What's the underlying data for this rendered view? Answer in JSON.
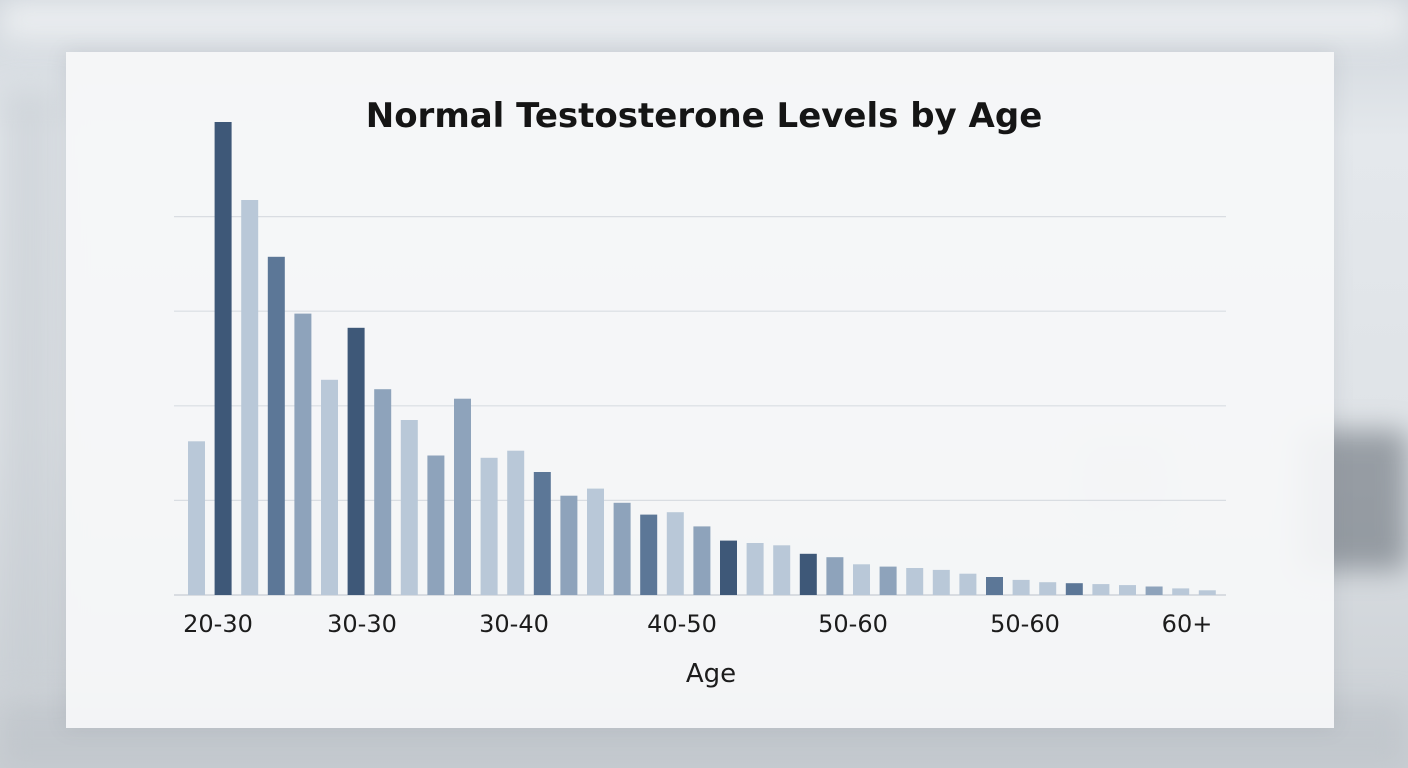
{
  "chart_data": {
    "type": "bar",
    "title": "Normal Testosterone Levels by Age",
    "xlabel": "Age",
    "ylabel": "",
    "ylim": [
      0,
      100
    ],
    "grid": true,
    "tick_labels": [
      "20-30",
      "30-30",
      "30-40",
      "40-50",
      "50-60",
      "50-60",
      "60+"
    ],
    "values": [
      32.5,
      100,
      83.5,
      71.5,
      59.5,
      45.5,
      56.5,
      43.5,
      37,
      29.5,
      41.5,
      29,
      30.5,
      26,
      21,
      22.5,
      19.5,
      17,
      17.5,
      14.5,
      11.5,
      11,
      10.5,
      8.7,
      8,
      6.5,
      6,
      5.7,
      5.3,
      4.5,
      3.8,
      3.2,
      2.7,
      2.5,
      2.3,
      2.1,
      1.8,
      1.4,
      1.0
    ],
    "colors": {
      "dark": "#3e5878",
      "mid": "#5c7797",
      "muted": "#8ea3bb",
      "light": "#b9c8d8"
    },
    "shades": [
      "light",
      "dark",
      "light",
      "mid",
      "muted",
      "light",
      "dark",
      "muted",
      "light",
      "muted",
      "muted",
      "light",
      "light",
      "mid",
      "muted",
      "light",
      "muted",
      "mid",
      "light",
      "muted",
      "dark",
      "light",
      "light",
      "dark",
      "muted",
      "light",
      "muted",
      "light",
      "light",
      "light",
      "mid",
      "light",
      "light",
      "mid",
      "light",
      "light",
      "muted",
      "light",
      "light"
    ]
  }
}
